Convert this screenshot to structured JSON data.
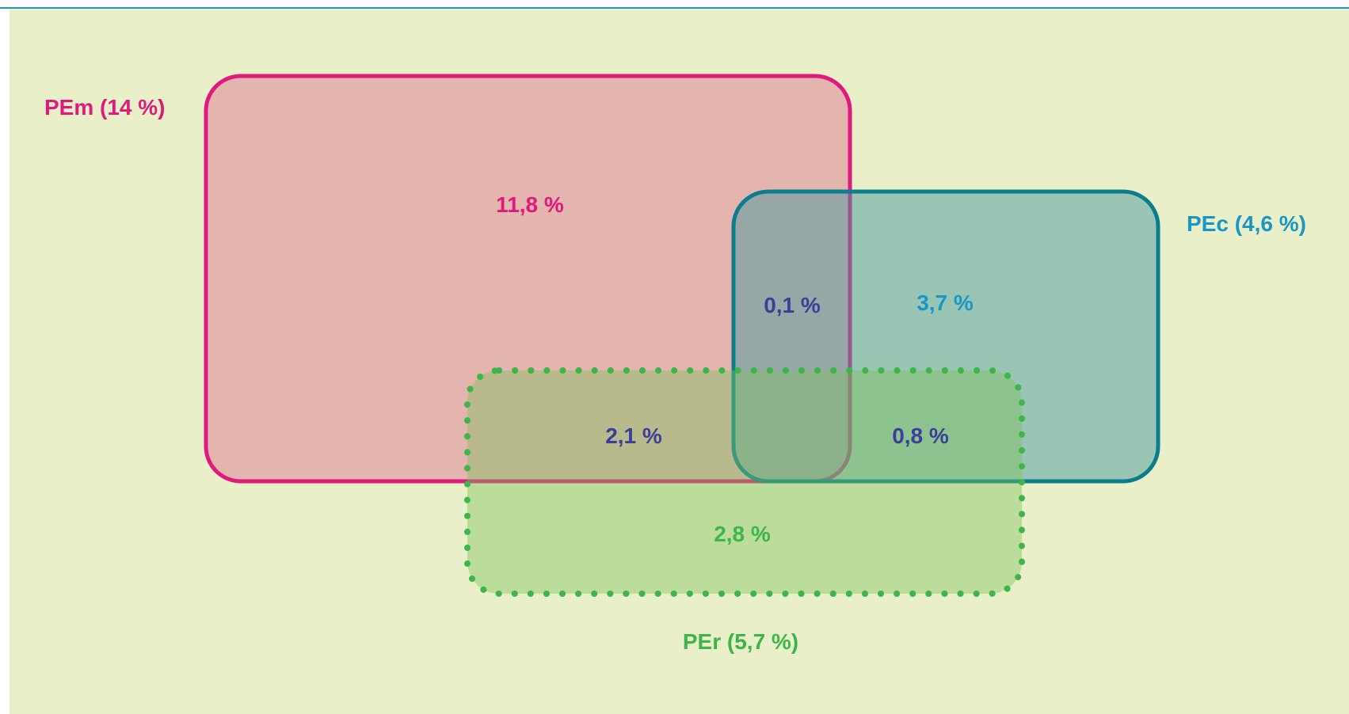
{
  "diagram": {
    "sets": {
      "pem": {
        "label": "PEm (14 %)",
        "color": "#e0197d",
        "fill": "#e3a3a6"
      },
      "pec": {
        "label": "PEc (4,6 %)",
        "color": "#0b7d8c",
        "fill": "#6fb7b0",
        "label_color": "#1a96c5"
      },
      "per": {
        "label": "PEr (5,7 %)",
        "color": "#3db549",
        "fill": "#9fd18a"
      }
    },
    "regions": {
      "pem_only": "11,8 %",
      "pem_pec": "0,1 %",
      "pec_only": "3,7 %",
      "pem_per": "2,1 %",
      "pec_per": "0,8 %",
      "per_only": "2,8 %"
    },
    "colors": {
      "background": "#e9f0c9",
      "top_rule": "#1a96c5",
      "overlap_text": "#3b3f99"
    }
  }
}
